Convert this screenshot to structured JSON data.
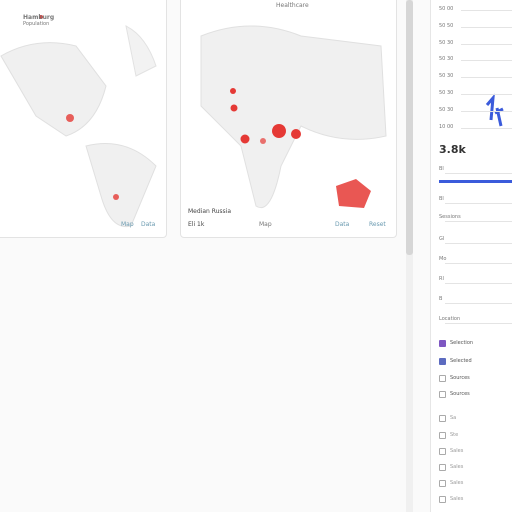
{
  "cards": [
    {
      "title": "Hamburg",
      "subtitle": "Population",
      "footer_left": "",
      "footer_links": [
        "Map",
        "Data"
      ]
    },
    {
      "title": "Healthcare",
      "subtitle": "",
      "footer_left": "Median Russia",
      "footer_note": "Eli 1k",
      "footer_mid": "Map",
      "footer_links": [
        "Data",
        "Reset"
      ]
    }
  ],
  "panel": {
    "scale": [
      "50 00",
      "50 50",
      "50 30",
      "50 30",
      "50 30",
      "50 30",
      "50 30",
      "10 00"
    ],
    "value": "3.8k",
    "fields": [
      "Bl",
      "Bl",
      "Sessions",
      "Gl",
      "Mo",
      "Rl",
      "B",
      "Location"
    ],
    "options": [
      {
        "label": "Selection",
        "checked": true
      },
      {
        "label": "Selected",
        "checked": true
      },
      {
        "label": "Sources",
        "checked": false
      },
      {
        "label": "Sources",
        "checked": false
      },
      {
        "label": "Sa",
        "checked": false
      },
      {
        "label": "Ste",
        "checked": false
      },
      {
        "label": "Sales",
        "checked": false
      },
      {
        "label": "Sales",
        "checked": false
      },
      {
        "label": "Sales",
        "checked": false
      },
      {
        "label": "Sales",
        "checked": false
      }
    ]
  }
}
